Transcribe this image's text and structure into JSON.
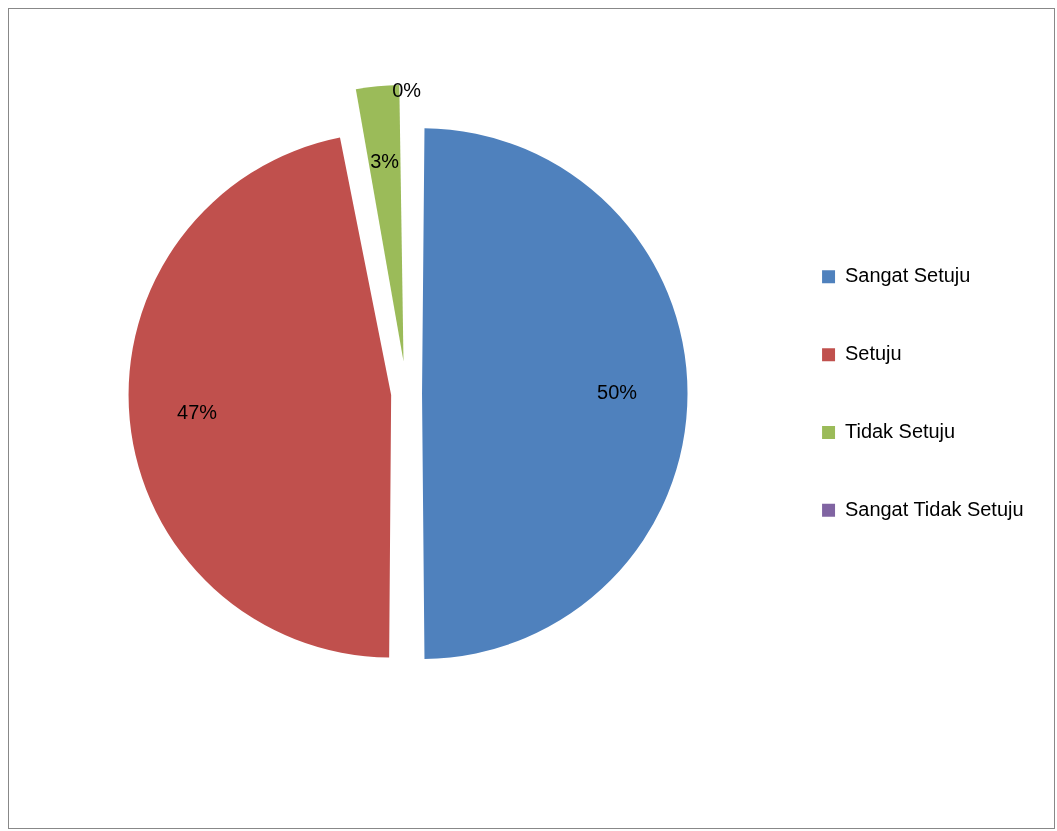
{
  "chart_data": {
    "type": "pie",
    "categories": [
      "Sangat Setuju",
      "Setuju",
      "Tidak Setuju",
      "Sangat Tidak Setuju"
    ],
    "values": [
      50,
      47,
      3,
      0
    ],
    "colors": [
      "#4f81bd",
      "#c0504d",
      "#9bbb59",
      "#8064a2"
    ],
    "value_labels": [
      "50%",
      "47%",
      "3%",
      "0%"
    ],
    "legend": "right"
  }
}
